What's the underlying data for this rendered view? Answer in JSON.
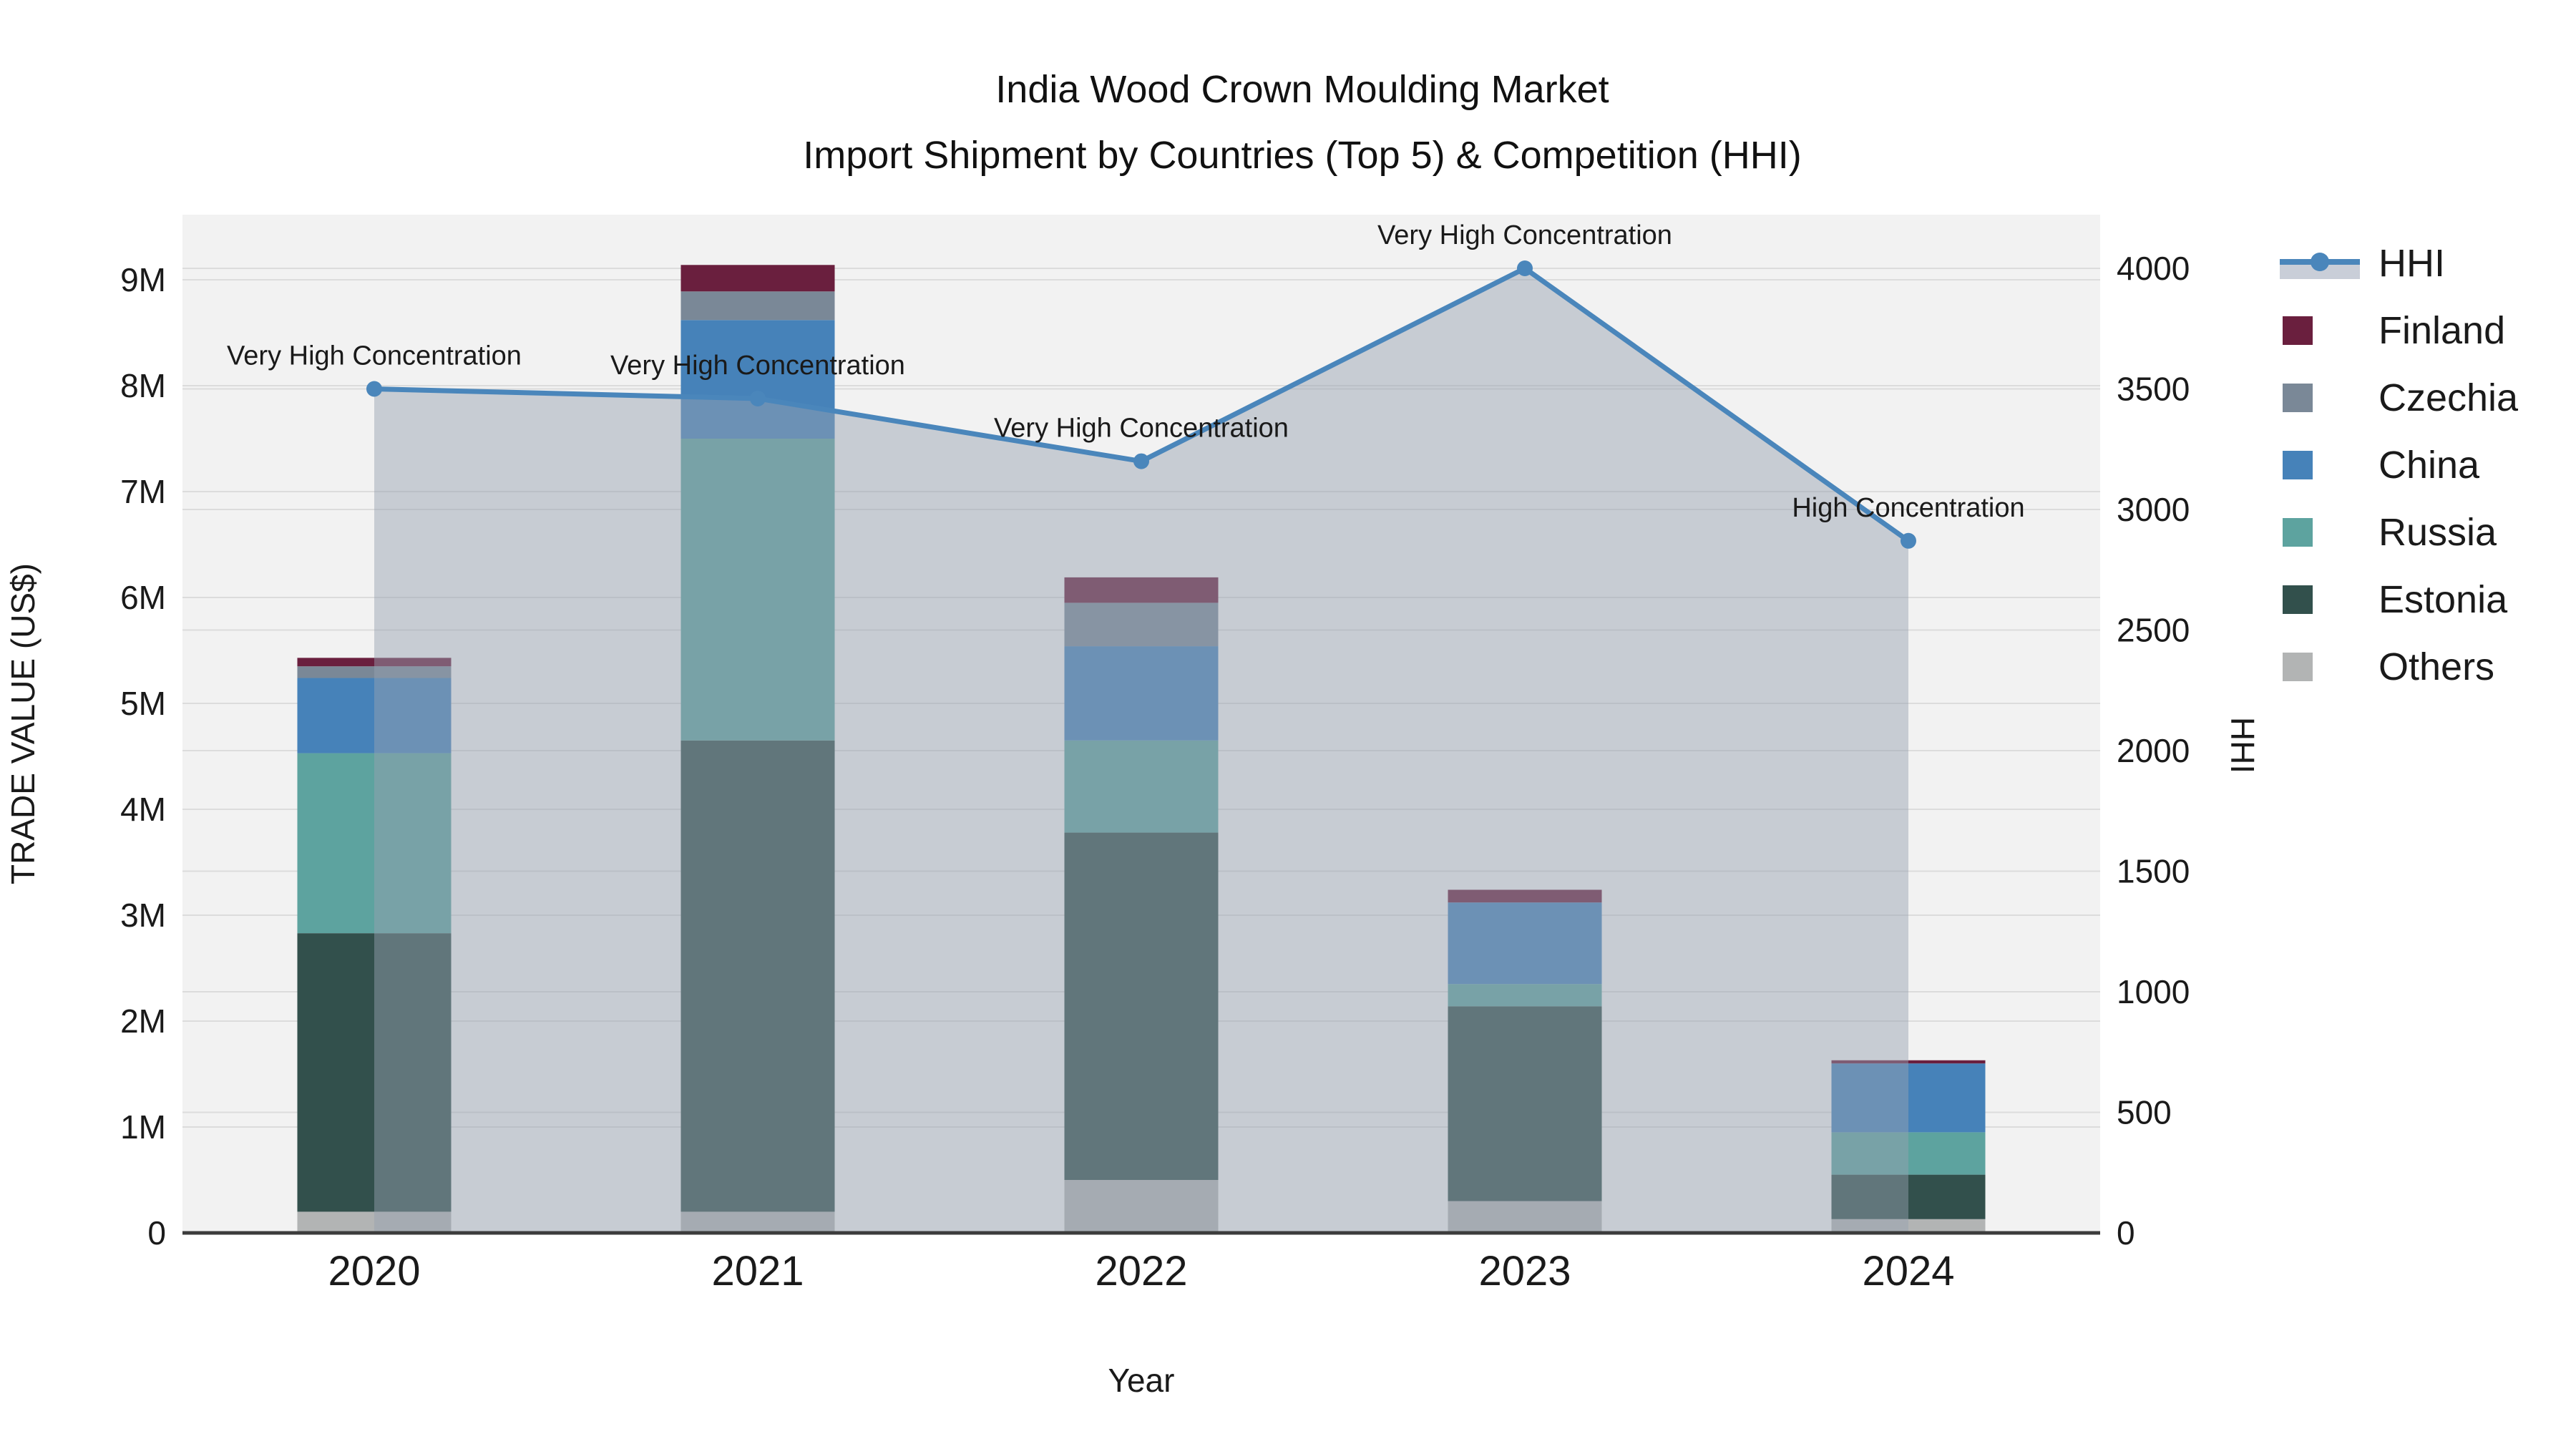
{
  "title": {
    "line1": "India Wood Crown Moulding Market",
    "line2": "Import Shipment by Countries (Top 5) & Competition (HHI)"
  },
  "axes": {
    "left": {
      "title": "TRADE VALUE (US$)",
      "tick_labels": [
        "0",
        "1M",
        "2M",
        "3M",
        "4M",
        "5M",
        "6M",
        "7M",
        "8M",
        "9M"
      ]
    },
    "right": {
      "title": "HHI",
      "tick_labels": [
        "0",
        "500",
        "1000",
        "1500",
        "2000",
        "2500",
        "3000",
        "3500",
        "4000"
      ]
    },
    "x": {
      "title": "Year"
    }
  },
  "chart_data": {
    "type": "bar",
    "subtype": "stacked bars (left axis, trade value in millions US$) + HHI line with area fill (right axis)",
    "categories": [
      "2020",
      "2021",
      "2022",
      "2023",
      "2024"
    ],
    "series": [
      {
        "name": "Others",
        "color": "#b2b4b4",
        "values": [
          0.2,
          0.2,
          0.5,
          0.3,
          0.13
        ]
      },
      {
        "name": "Estonia",
        "color": "#32504c",
        "values": [
          2.63,
          4.45,
          3.28,
          1.84,
          0.42
        ]
      },
      {
        "name": "Russia",
        "color": "#5da39f",
        "values": [
          1.7,
          2.85,
          0.87,
          0.21,
          0.4
        ]
      },
      {
        "name": "China",
        "color": "#4682b9",
        "values": [
          0.71,
          1.12,
          0.89,
          0.77,
          0.65
        ]
      },
      {
        "name": "Czechia",
        "color": "#7a8897",
        "values": [
          0.11,
          0.27,
          0.41,
          0.0,
          0.0
        ]
      },
      {
        "name": "Finland",
        "color": "#6a1f3e",
        "values": [
          0.08,
          0.25,
          0.24,
          0.12,
          0.03
        ]
      }
    ],
    "line_series": {
      "name": "HHI",
      "color": "#4a86bb",
      "fill_color": "rgba(151,161,176,0.47)",
      "values": [
        3500,
        3460,
        3200,
        4000,
        2870
      ]
    },
    "annotations": [
      "Very High Concentration",
      "Very High Concentration",
      "Very High Concentration",
      "Very High Concentration",
      "High Concentration"
    ],
    "xlabel": "Year",
    "ylabel_left": "TRADE VALUE (US$)",
    "ylabel_right": "HHI",
    "ylim_left_millions": [
      0,
      9.6
    ],
    "ylim_right": [
      0,
      4220
    ],
    "grid": "on",
    "legend_position": "right"
  },
  "legend": {
    "items": [
      {
        "label": "HHI",
        "type": "line",
        "color": "#4a86bb",
        "fill_sample": "#c9ced8"
      },
      {
        "label": "Finland",
        "type": "swatch",
        "color": "#6a1f3e"
      },
      {
        "label": "Czechia",
        "type": "swatch",
        "color": "#7a8897"
      },
      {
        "label": "China",
        "type": "swatch",
        "color": "#4682b9"
      },
      {
        "label": "Russia",
        "type": "swatch",
        "color": "#5da39f"
      },
      {
        "label": "Estonia",
        "type": "swatch",
        "color": "#32504c"
      },
      {
        "label": "Others",
        "type": "swatch",
        "color": "#b2b4b4"
      }
    ]
  },
  "colors": {
    "plot_background": "#f2f2f2",
    "gridline": "#dcdcdc",
    "axis_line": "#3c3c3c",
    "text": "#1a1a1a"
  }
}
